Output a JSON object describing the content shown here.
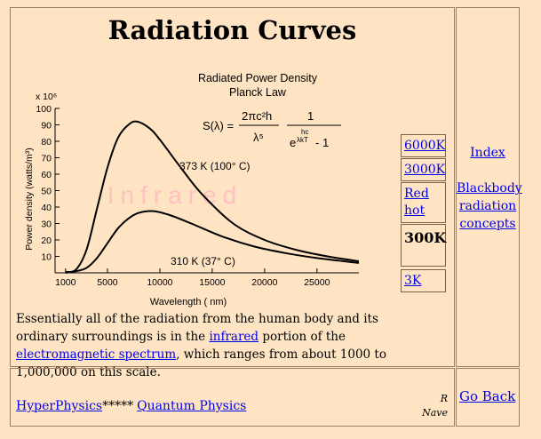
{
  "page": {
    "title": "Radiation Curves",
    "description_prefix": "Essentially all of the radiation from the human body and its ordinary surroundings is in the ",
    "link_infrared": "infrared",
    "description_mid": " portion of the ",
    "link_spectrum": "electromagnetic spectrum",
    "description_suffix": ", which ranges from about 1000 to 1,000,000 on this scale."
  },
  "temperature_links": [
    "6000K",
    "3000K",
    "Red hot",
    "300K",
    "3K"
  ],
  "active_temperature": "300K",
  "side_nav": {
    "index": "Index",
    "concepts": "Blackbody radiation concepts",
    "go_back": "Go Back"
  },
  "footer": {
    "hyperphysics": "HyperPhysics",
    "stars": "*****",
    "quantum": "Quantum Physics",
    "author_initial": "R",
    "author_name": "Nave"
  },
  "chart_data": {
    "type": "line",
    "title": "Radiated Power Density",
    "subtitle": "Planck Law",
    "formula_lhs": "S(λ) =",
    "xlabel": "Wavelength ( nm)",
    "ylabel": "Power density (watts/m³)",
    "y_multiplier": "x 10⁶",
    "watermark": "Infrared",
    "xlim": [
      0,
      29000
    ],
    "ylim": [
      0,
      100
    ],
    "x_ticks": [
      1000,
      5000,
      10000,
      15000,
      20000,
      25000
    ],
    "y_ticks": [
      10,
      20,
      30,
      40,
      50,
      60,
      70,
      80,
      90,
      100
    ],
    "series": [
      {
        "name": "373 K (100° C)",
        "label": "373 K (100° C)",
        "x": [
          1000,
          2000,
          3000,
          4000,
          5000,
          6000,
          7000,
          7800,
          9000,
          10000,
          12000,
          14000,
          17000,
          20000,
          23000,
          26000,
          29000
        ],
        "y": [
          0.5,
          2,
          14,
          39,
          64,
          82,
          90,
          92,
          88,
          81,
          64,
          48,
          30,
          20,
          14,
          10,
          7
        ]
      },
      {
        "name": "310 K (37° C)",
        "label": "310 K (37° C)",
        "x": [
          1000,
          2000,
          3000,
          4000,
          5000,
          6000,
          7000,
          8000,
          9400,
          11000,
          13000,
          16000,
          19000,
          22000,
          25000,
          29000
        ],
        "y": [
          0,
          1,
          3,
          9,
          18,
          27,
          33,
          36.5,
          37.5,
          35,
          30,
          22,
          16,
          12,
          9,
          6
        ]
      }
    ]
  }
}
